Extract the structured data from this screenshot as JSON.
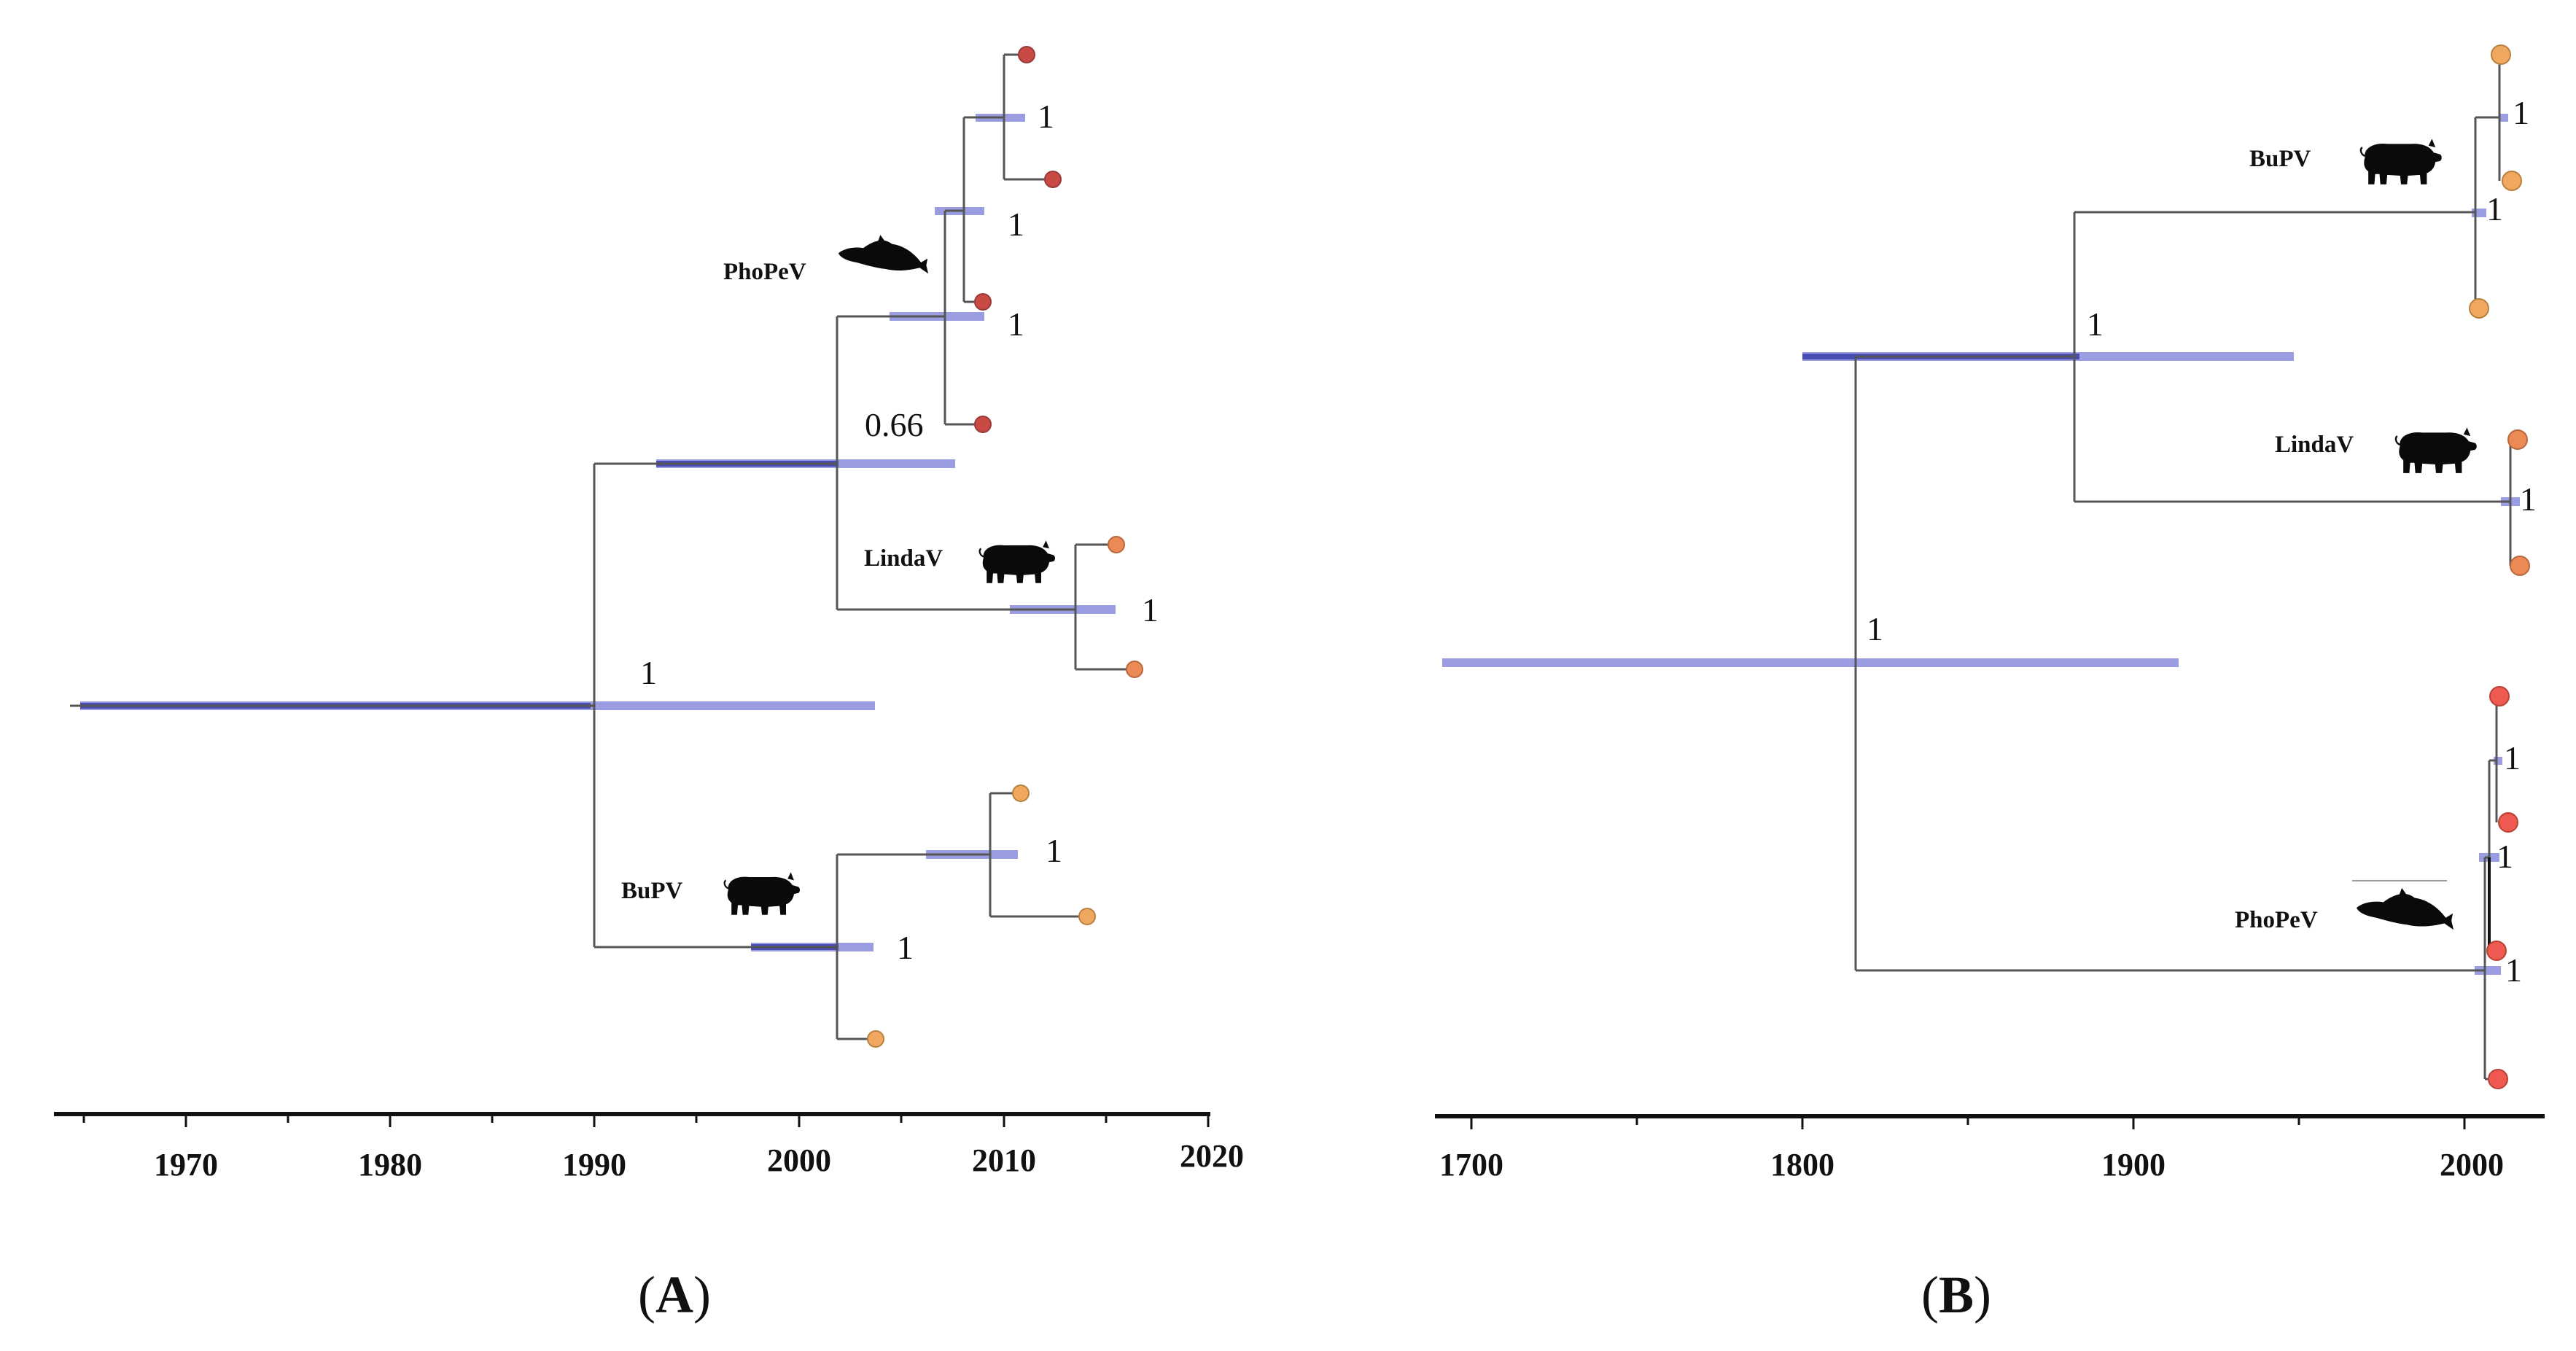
{
  "panels": {
    "A": {
      "label_open": "(",
      "label_letter": "A",
      "label_close": ")",
      "axis_years": [
        "1970",
        "1980",
        "1990",
        "2000",
        "2010",
        "2020"
      ],
      "support_values": [
        "1",
        "1",
        "1",
        "0.66",
        "1",
        "1",
        "1"
      ],
      "clades": {
        "phopev": "PhoPeV",
        "lindav": "LindaV",
        "bupv": "BuPV"
      }
    },
    "B": {
      "label_open": "(",
      "label_letter": "B",
      "label_close": ")",
      "axis_years": [
        "1700",
        "1800",
        "1900",
        "2000"
      ],
      "support_values": [
        "1",
        "1",
        "1",
        "1",
        "1",
        "1",
        "1"
      ],
      "clades": {
        "bupv": "BuPV",
        "lindav": "LindaV",
        "phopev": "PhoPeV"
      }
    }
  },
  "colors": {
    "phopev_tip": "#c94a44",
    "lindav_tip": "#ec8a55",
    "bupv_tip": "#f0a860",
    "b_phopev_tip": "#ee5a50",
    "hpd_bar": "#7377d6"
  }
}
